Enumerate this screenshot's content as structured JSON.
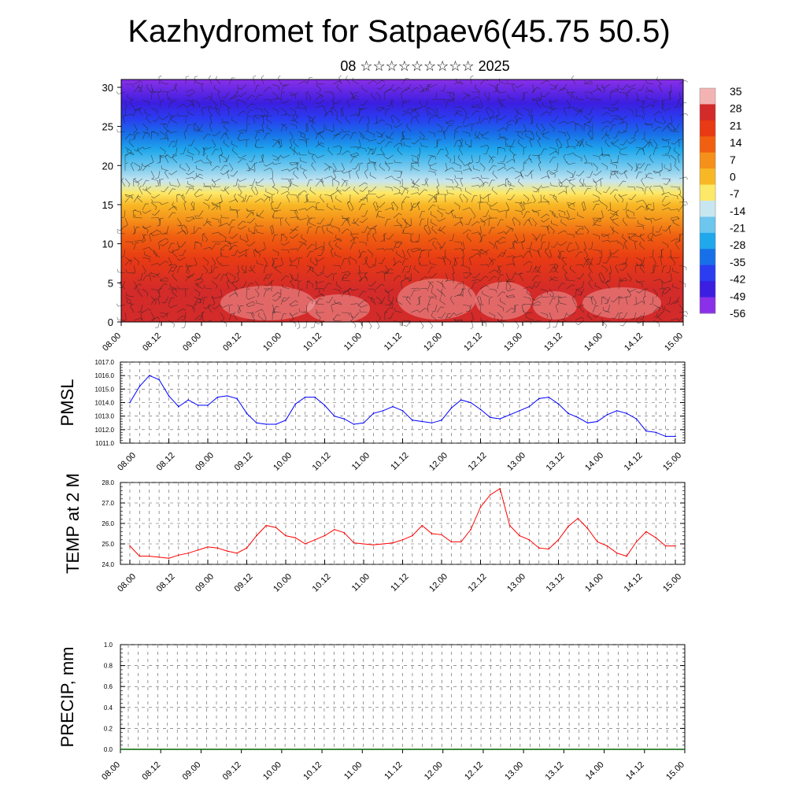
{
  "title": "Kazhydromet for Satpaev6(45.75 50.5)",
  "subtitle": "08 ☆☆☆☆☆☆☆☆☆ 2025",
  "chart_data": [
    {
      "type": "heatmap",
      "description_tag": "temperature-height cross-section with wind barbs",
      "yticks": [
        0,
        5,
        10,
        15,
        20,
        25,
        30
      ],
      "ylim": [
        0,
        31
      ],
      "xticks": [
        "08.00",
        "08.12",
        "09.00",
        "09.12",
        "10.00",
        "10.12",
        "11.00",
        "11.12",
        "12.00",
        "12.12",
        "13.00",
        "13.12",
        "14.00",
        "14.12",
        "15.00"
      ],
      "colorbar": {
        "labels": [
          "35",
          "28",
          "21",
          "14",
          "7",
          "0",
          "-7",
          "-14",
          "-21",
          "-28",
          "-35",
          "-42",
          "-49",
          "-56"
        ],
        "colors": [
          "#f4b3b3",
          "#d32a2a",
          "#e83a14",
          "#f06010",
          "#f5901a",
          "#f8b826",
          "#fde968",
          "#c8e6f0",
          "#6cc6ee",
          "#20a8ec",
          "#1870e8",
          "#2a3df0",
          "#3c1ee0",
          "#8a30e8"
        ]
      },
      "grid": false
    },
    {
      "type": "line",
      "ylabel": "PMSL",
      "ylim": [
        1011.0,
        1017.0
      ],
      "yticks": [
        "1011.0",
        "1012.0",
        "1013.0",
        "1014.0",
        "1015.0",
        "1016.0",
        "1017.0"
      ],
      "xticks": [
        "08.00",
        "08.12",
        "09.00",
        "09.12",
        "10.00",
        "10.12",
        "11.00",
        "11.12",
        "12.00",
        "12.12",
        "13.00",
        "13.12",
        "14.00",
        "14.12",
        "15.00"
      ],
      "color": "#0000ff",
      "grid": true,
      "values": [
        1014.0,
        1015.2,
        1016.0,
        1015.7,
        1014.5,
        1013.7,
        1014.2,
        1013.8,
        1013.8,
        1014.4,
        1014.5,
        1014.3,
        1013.2,
        1012.5,
        1012.4,
        1012.4,
        1012.7,
        1013.9,
        1014.4,
        1014.4,
        1013.8,
        1013.0,
        1012.8,
        1012.4,
        1012.5,
        1013.2,
        1013.4,
        1013.7,
        1013.4,
        1012.7,
        1012.6,
        1012.5,
        1012.7,
        1013.6,
        1014.2,
        1014.0,
        1013.5,
        1012.9,
        1012.8,
        1013.1,
        1013.4,
        1013.7,
        1014.3,
        1014.4,
        1013.9,
        1013.2,
        1012.9,
        1012.5,
        1012.6,
        1013.1,
        1013.4,
        1013.2,
        1012.8,
        1011.9,
        1011.8,
        1011.5,
        1011.5
      ]
    },
    {
      "type": "line",
      "ylabel": "TEMP at 2 M",
      "ylim": [
        24.0,
        28.0
      ],
      "yticks": [
        "24.0",
        "25.0",
        "26.0",
        "27.0",
        "28.0"
      ],
      "xticks": [
        "08.00",
        "08.12",
        "09.00",
        "09.12",
        "10.00",
        "10.12",
        "11.00",
        "11.12",
        "12.00",
        "12.12",
        "13.00",
        "13.12",
        "14.00",
        "14.12",
        "15.00"
      ],
      "color": "#ff0000",
      "grid": true,
      "values": [
        24.9,
        24.4,
        24.4,
        24.35,
        24.3,
        24.45,
        24.55,
        24.7,
        24.85,
        24.8,
        24.65,
        24.55,
        24.8,
        25.4,
        25.9,
        25.8,
        25.4,
        25.3,
        25.0,
        25.2,
        25.4,
        25.7,
        25.55,
        25.05,
        25.0,
        24.95,
        25.0,
        25.05,
        25.2,
        25.4,
        25.9,
        25.5,
        25.45,
        25.1,
        25.1,
        25.7,
        26.8,
        27.4,
        27.7,
        25.9,
        25.4,
        25.2,
        24.8,
        24.75,
        25.2,
        25.85,
        26.25,
        25.75,
        25.1,
        24.9,
        24.55,
        24.4,
        25.1,
        25.6,
        25.3,
        24.9,
        24.9
      ]
    },
    {
      "type": "line",
      "ylabel": "PRECIP, mm",
      "ylim": [
        0.0,
        1.0
      ],
      "yticks": [
        "0.0",
        "0.2",
        "0.4",
        "0.6",
        "0.8",
        "1.0"
      ],
      "xticks": [
        "08.00",
        "08.12",
        "09.00",
        "09.12",
        "10.00",
        "10.12",
        "11.00",
        "11.12",
        "12.00",
        "12.12",
        "13.00",
        "13.12",
        "14.00",
        "14.12",
        "15.00"
      ],
      "color": "#006400",
      "grid": true,
      "values": [
        0,
        0,
        0,
        0,
        0,
        0,
        0,
        0,
        0,
        0,
        0,
        0,
        0,
        0,
        0,
        0,
        0,
        0,
        0,
        0,
        0,
        0,
        0,
        0,
        0,
        0,
        0,
        0,
        0,
        0,
        0,
        0,
        0,
        0,
        0,
        0,
        0,
        0,
        0,
        0,
        0,
        0,
        0,
        0,
        0,
        0,
        0,
        0,
        0,
        0,
        0,
        0,
        0,
        0,
        0,
        0,
        0
      ]
    }
  ]
}
